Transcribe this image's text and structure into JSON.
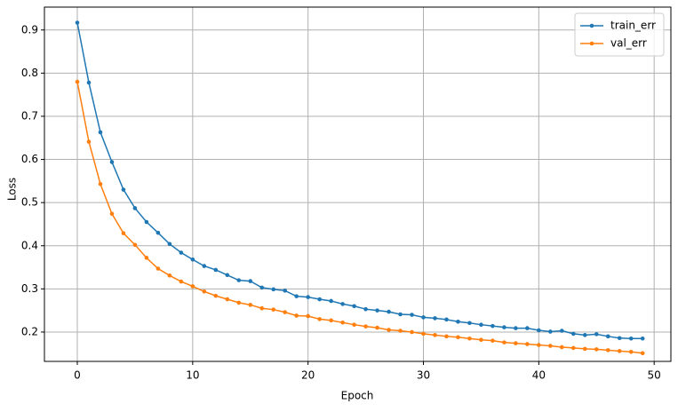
{
  "chart_data": {
    "type": "line",
    "x_label": "Epoch",
    "y_label": "Loss",
    "x": [
      0,
      1,
      2,
      3,
      4,
      5,
      6,
      7,
      8,
      9,
      10,
      11,
      12,
      13,
      14,
      15,
      16,
      17,
      18,
      19,
      20,
      21,
      22,
      23,
      24,
      25,
      26,
      27,
      28,
      29,
      30,
      31,
      32,
      33,
      34,
      35,
      36,
      37,
      38,
      39,
      40,
      41,
      42,
      43,
      44,
      45,
      46,
      47,
      48,
      49
    ],
    "series": [
      {
        "name": "train_err",
        "color": "#1f77b4",
        "values": [
          0.917,
          0.778,
          0.663,
          0.594,
          0.53,
          0.487,
          0.455,
          0.43,
          0.404,
          0.384,
          0.368,
          0.353,
          0.344,
          0.332,
          0.32,
          0.318,
          0.303,
          0.299,
          0.296,
          0.283,
          0.281,
          0.276,
          0.272,
          0.265,
          0.26,
          0.253,
          0.25,
          0.247,
          0.241,
          0.24,
          0.234,
          0.232,
          0.229,
          0.224,
          0.221,
          0.217,
          0.214,
          0.211,
          0.209,
          0.209,
          0.204,
          0.201,
          0.203,
          0.196,
          0.193,
          0.195,
          0.19,
          0.186,
          0.185,
          0.185
        ]
      },
      {
        "name": "val_err",
        "color": "#ff7f0e",
        "values": [
          0.78,
          0.641,
          0.543,
          0.474,
          0.429,
          0.402,
          0.372,
          0.347,
          0.331,
          0.317,
          0.306,
          0.294,
          0.284,
          0.276,
          0.268,
          0.263,
          0.255,
          0.252,
          0.246,
          0.238,
          0.237,
          0.23,
          0.227,
          0.222,
          0.217,
          0.213,
          0.21,
          0.205,
          0.203,
          0.2,
          0.196,
          0.193,
          0.19,
          0.188,
          0.185,
          0.182,
          0.18,
          0.176,
          0.174,
          0.172,
          0.17,
          0.168,
          0.165,
          0.163,
          0.161,
          0.16,
          0.158,
          0.156,
          0.154,
          0.151
        ]
      }
    ],
    "xlim": [
      -2.85,
      51.45
    ],
    "ylim": [
      0.132,
      0.953
    ],
    "xticks": [
      0,
      10,
      20,
      30,
      40,
      50
    ],
    "yticks": [
      0.2,
      0.3,
      0.4,
      0.5,
      0.6,
      0.7,
      0.8,
      0.9
    ],
    "grid": true,
    "legend": "upper right"
  }
}
